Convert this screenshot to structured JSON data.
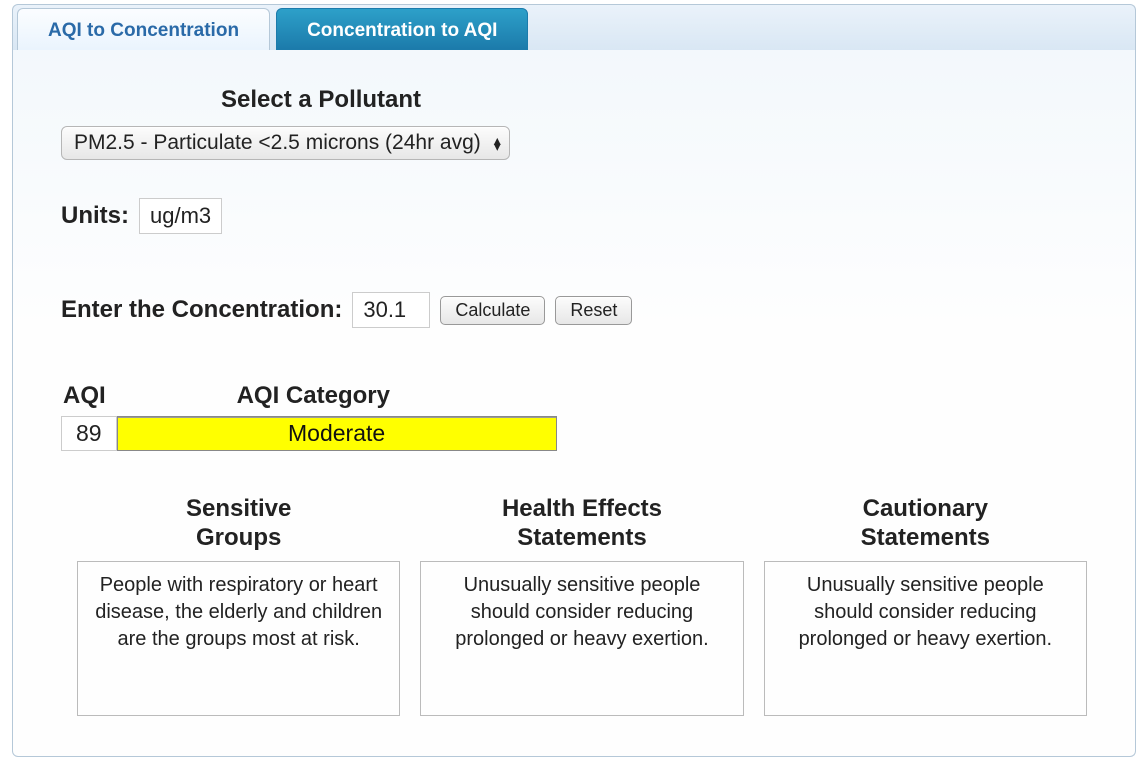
{
  "tabs": {
    "inactive_label": "AQI to Concentration",
    "active_label": "Concentration to AQI"
  },
  "pollutant": {
    "heading": "Select a Pollutant",
    "selected_text": "PM2.5 - Particulate <2.5 microns (24hr avg)"
  },
  "units": {
    "label": "Units:",
    "value": "ug/m3"
  },
  "concentration": {
    "label": "Enter the Concentration:",
    "value": "30.1",
    "calculate_label": "Calculate",
    "reset_label": "Reset"
  },
  "result": {
    "aqi_label": "AQI",
    "aqi_value": "89",
    "category_label": "AQI Category",
    "category_value": "Moderate",
    "category_bg": "#ffff00",
    "category_fg": "#111111"
  },
  "statements": {
    "sensitive": {
      "heading_l1": "Sensitive",
      "heading_l2": "Groups",
      "body": "People with respiratory or heart disease, the elderly and children are the groups most at risk."
    },
    "health": {
      "heading_l1": "Health Effects",
      "heading_l2": "Statements",
      "body": "Unusually sensitive people should consider reducing prolonged or heavy exertion."
    },
    "cautionary": {
      "heading_l1": "Cautionary",
      "heading_l2": "Statements",
      "body": "Unusually sensitive people should consider reducing prolonged or heavy exertion."
    }
  },
  "colors": {
    "tab_active_bg_top": "#2da0c9",
    "tab_active_bg_bottom": "#1c7bab",
    "tab_inactive_text": "#2a6aa8",
    "panel_border": "#b5c8d8"
  }
}
